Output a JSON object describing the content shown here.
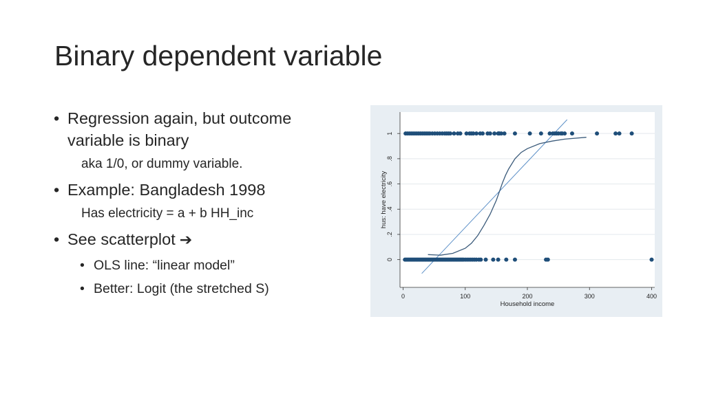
{
  "slide": {
    "title": "Binary dependent variable",
    "bullets": [
      {
        "text": "Regression again, but outcome variable is binary",
        "sub": "aka 1/0, or dummy variable."
      },
      {
        "text": "Example: Bangladesh 1998",
        "sub": "Has electricity = a + b HH_inc"
      },
      {
        "text": "See scatterplot",
        "arrow": "➔",
        "items": [
          "OLS line: “linear model”",
          "Better: Logit (the stretched S)"
        ]
      }
    ]
  },
  "chart_data": {
    "type": "scatter",
    "xlabel": "Household income",
    "ylabel": "hus: have electricity",
    "xlim": [
      -5,
      405
    ],
    "ylim": [
      -0.22,
      1.17
    ],
    "xticks": [
      0,
      100,
      200,
      300,
      400
    ],
    "yticks": [
      0,
      0.2,
      0.4,
      0.6,
      0.8,
      1
    ],
    "xtick_labels": [
      "0",
      "100",
      "200",
      "300",
      "400"
    ],
    "ytick_labels": [
      "0",
      ".2",
      ".4",
      ".6",
      ".8",
      "1"
    ],
    "grid": true,
    "colors": {
      "points": "#1f4e79",
      "ols_line": "#5b8fc7",
      "logit_curve": "#3a5a7a",
      "plot_bg": "#ffffff",
      "outer_bg": "#e8eef3"
    },
    "points": {
      "y1_x": [
        4,
        7,
        10,
        13,
        16,
        19,
        22,
        25,
        28,
        31,
        34,
        37,
        40,
        43,
        47,
        51,
        55,
        59,
        63,
        67,
        70,
        73,
        76,
        82,
        88,
        92,
        102,
        107,
        110,
        113,
        118,
        124,
        128,
        136,
        140,
        147,
        153,
        154,
        155,
        158,
        163,
        180,
        204,
        222,
        236,
        241,
        244,
        247,
        250,
        254,
        256,
        260,
        272,
        312,
        342,
        348,
        368
      ],
      "y0_x": [
        3,
        5,
        7,
        9,
        11,
        13,
        15,
        17,
        19,
        21,
        23,
        25,
        27,
        29,
        31,
        33,
        35,
        37,
        39,
        41,
        43,
        45,
        47,
        49,
        51,
        53,
        55,
        57,
        59,
        61,
        63,
        65,
        67,
        69,
        71,
        73,
        75,
        77,
        79,
        81,
        83,
        85,
        87,
        89,
        91,
        93,
        95,
        97,
        100,
        103,
        106,
        109,
        112,
        115,
        118,
        122,
        125,
        133,
        145,
        153,
        166,
        180,
        230,
        233,
        400
      ]
    },
    "ols_line": {
      "x": [
        30,
        264
      ],
      "y": [
        -0.11,
        1.11
      ]
    },
    "logit_curve": {
      "x": [
        40,
        60,
        80,
        100,
        110,
        120,
        130,
        140,
        150,
        155,
        160,
        165,
        170,
        180,
        190,
        200,
        220,
        240,
        260,
        295
      ],
      "y": [
        0.04,
        0.035,
        0.05,
        0.09,
        0.13,
        0.19,
        0.27,
        0.36,
        0.47,
        0.54,
        0.61,
        0.67,
        0.72,
        0.8,
        0.85,
        0.88,
        0.92,
        0.94,
        0.955,
        0.97
      ]
    }
  }
}
